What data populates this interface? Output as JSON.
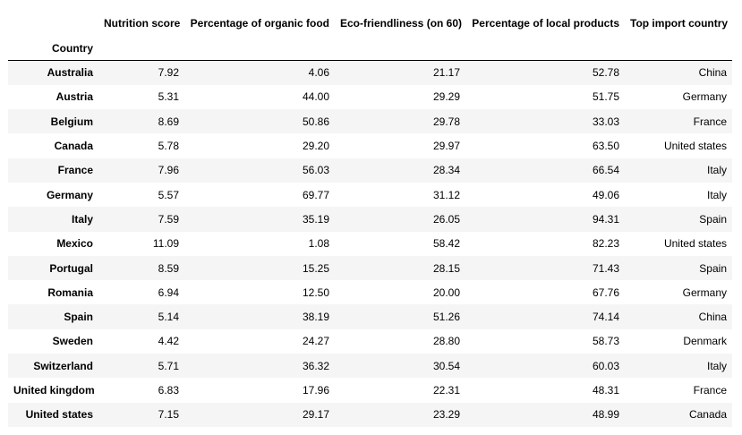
{
  "table": {
    "index_name": "Country",
    "columns": [
      "Nutrition score",
      "Percentage of organic food",
      "Eco-friendliness (on 60)",
      "Percentage of local products",
      "Top import country"
    ],
    "rows": [
      {
        "country": "Australia",
        "nutrition": "7.92",
        "organic": "4.06",
        "eco": "21.17",
        "local": "52.78",
        "import": "China"
      },
      {
        "country": "Austria",
        "nutrition": "5.31",
        "organic": "44.00",
        "eco": "29.29",
        "local": "51.75",
        "import": "Germany"
      },
      {
        "country": "Belgium",
        "nutrition": "8.69",
        "organic": "50.86",
        "eco": "29.78",
        "local": "33.03",
        "import": "France"
      },
      {
        "country": "Canada",
        "nutrition": "5.78",
        "organic": "29.20",
        "eco": "29.97",
        "local": "63.50",
        "import": "United states"
      },
      {
        "country": "France",
        "nutrition": "7.96",
        "organic": "56.03",
        "eco": "28.34",
        "local": "66.54",
        "import": "Italy"
      },
      {
        "country": "Germany",
        "nutrition": "5.57",
        "organic": "69.77",
        "eco": "31.12",
        "local": "49.06",
        "import": "Italy"
      },
      {
        "country": "Italy",
        "nutrition": "7.59",
        "organic": "35.19",
        "eco": "26.05",
        "local": "94.31",
        "import": "Spain"
      },
      {
        "country": "Mexico",
        "nutrition": "11.09",
        "organic": "1.08",
        "eco": "58.42",
        "local": "82.23",
        "import": "United states"
      },
      {
        "country": "Portugal",
        "nutrition": "8.59",
        "organic": "15.25",
        "eco": "28.15",
        "local": "71.43",
        "import": "Spain"
      },
      {
        "country": "Romania",
        "nutrition": "6.94",
        "organic": "12.50",
        "eco": "20.00",
        "local": "67.76",
        "import": "Germany"
      },
      {
        "country": "Spain",
        "nutrition": "5.14",
        "organic": "38.19",
        "eco": "51.26",
        "local": "74.14",
        "import": "China"
      },
      {
        "country": "Sweden",
        "nutrition": "4.42",
        "organic": "24.27",
        "eco": "28.80",
        "local": "58.73",
        "import": "Denmark"
      },
      {
        "country": "Switzerland",
        "nutrition": "5.71",
        "organic": "36.32",
        "eco": "30.54",
        "local": "60.03",
        "import": "Italy"
      },
      {
        "country": "United kingdom",
        "nutrition": "6.83",
        "organic": "17.96",
        "eco": "22.31",
        "local": "48.31",
        "import": "France"
      },
      {
        "country": "United states",
        "nutrition": "7.15",
        "organic": "29.17",
        "eco": "23.29",
        "local": "48.99",
        "import": "Canada"
      }
    ]
  }
}
